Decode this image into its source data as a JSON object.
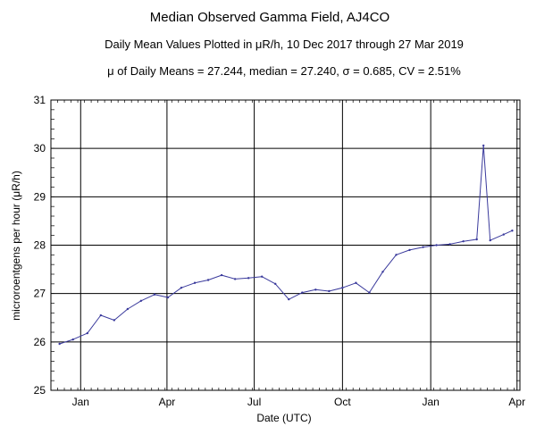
{
  "chart_data": {
    "type": "line",
    "title": "Median Observed Gamma Field, AJ4CO",
    "subtitle": "Daily Mean Values Plotted in μR/h, 10 Dec 2017 through 27 Mar 2019",
    "stats_line": "μ of Daily Means = 27.244,   median = 27.240,   σ = 0.685,   CV = 2.51%",
    "xlabel": "Date (UTC)",
    "ylabel": "microroentgens per hour (μR/h)",
    "x_start": "2017-12-10",
    "x_end": "2019-03-27",
    "xlim": [
      "2017-12-01",
      "2019-04-04"
    ],
    "ylim": [
      25,
      31
    ],
    "y_ticks": [
      25,
      26,
      27,
      28,
      29,
      30,
      31
    ],
    "x_ticks": [
      {
        "date": "2018-01-01",
        "label": "Jan"
      },
      {
        "date": "2018-04-01",
        "label": "Apr"
      },
      {
        "date": "2018-07-01",
        "label": "Jul"
      },
      {
        "date": "2018-10-01",
        "label": "Oct"
      },
      {
        "date": "2019-01-01",
        "label": "Jan"
      },
      {
        "date": "2019-04-01",
        "label": "Apr"
      }
    ],
    "grid": true,
    "series": [
      {
        "color": "#3a3a9c",
        "x": [
          "2017-12-10",
          "2017-12-24",
          "2018-01-08",
          "2018-01-22",
          "2018-02-05",
          "2018-02-19",
          "2018-03-05",
          "2018-03-19",
          "2018-04-02",
          "2018-04-16",
          "2018-04-30",
          "2018-05-14",
          "2018-05-28",
          "2018-06-11",
          "2018-06-25",
          "2018-07-09",
          "2018-07-23",
          "2018-08-06",
          "2018-08-20",
          "2018-09-03",
          "2018-09-17",
          "2018-10-01",
          "2018-10-15",
          "2018-10-29",
          "2018-11-12",
          "2018-11-26",
          "2018-12-10",
          "2018-12-24",
          "2019-01-07",
          "2019-01-21",
          "2019-02-04",
          "2019-02-18",
          "2019-02-25",
          "2019-03-04",
          "2019-03-18",
          "2019-03-27"
        ],
        "values": [
          25.96,
          26.05,
          26.18,
          26.55,
          26.45,
          26.68,
          26.85,
          26.98,
          26.92,
          27.12,
          27.22,
          27.28,
          27.38,
          27.3,
          27.32,
          27.35,
          27.2,
          26.88,
          27.02,
          27.08,
          27.05,
          27.12,
          27.22,
          27.02,
          27.45,
          27.8,
          27.9,
          27.96,
          28.0,
          28.02,
          28.08,
          28.12,
          30.06,
          28.1,
          28.22,
          28.3
        ]
      }
    ]
  }
}
